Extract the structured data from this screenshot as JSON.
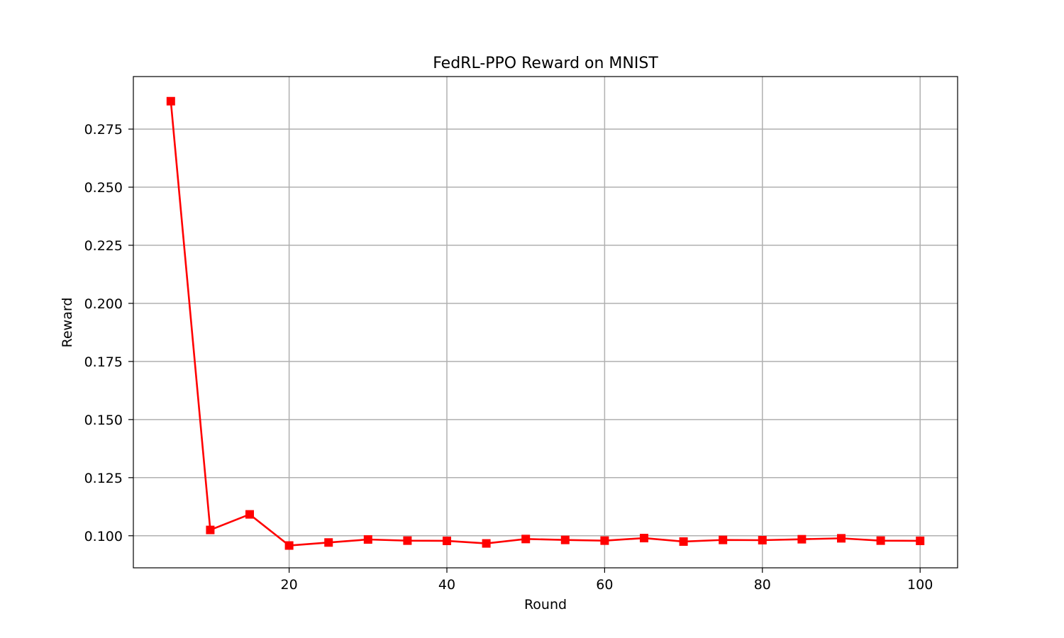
{
  "chart_data": {
    "type": "line",
    "title": "FedRL-PPO Reward on MNIST",
    "xlabel": "Round",
    "ylabel": "Reward",
    "xlim": [
      0.25,
      104.75
    ],
    "ylim": [
      0.0862,
      0.2976
    ],
    "xticks": [
      20,
      40,
      60,
      80,
      100
    ],
    "yticks": [
      0.1,
      0.125,
      0.15,
      0.175,
      0.2,
      0.225,
      0.25,
      0.275
    ],
    "ytick_labels": [
      "0.100",
      "0.125",
      "0.150",
      "0.175",
      "0.200",
      "0.225",
      "0.250",
      "0.275"
    ],
    "grid": true,
    "marker": "square",
    "series": [
      {
        "color": "#ff0000",
        "x": [
          5,
          10,
          15,
          20,
          25,
          30,
          35,
          40,
          45,
          50,
          55,
          60,
          65,
          70,
          75,
          80,
          85,
          90,
          95,
          100
        ],
        "y": [
          0.287,
          0.1025,
          0.1092,
          0.0958,
          0.0971,
          0.0984,
          0.0979,
          0.0978,
          0.0967,
          0.0986,
          0.0982,
          0.0979,
          0.099,
          0.0975,
          0.0982,
          0.0981,
          0.0985,
          0.0989,
          0.0979,
          0.0978
        ]
      }
    ]
  }
}
